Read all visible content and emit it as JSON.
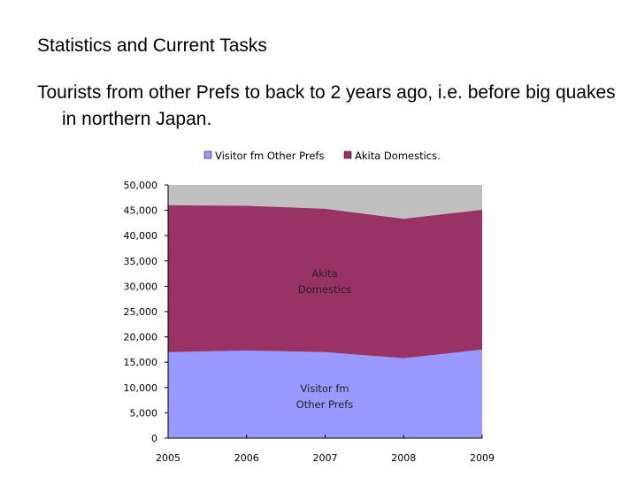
{
  "slide": {
    "title": "Statistics and Current Tasks",
    "body": "Tourists from other Prefs to back to 2 years ago, i.e. before big quakes in northern Japan."
  },
  "chart_data": {
    "type": "area",
    "stacked": true,
    "x": [
      "2005",
      "2006",
      "2007",
      "2008",
      "2009"
    ],
    "ylim": [
      0,
      50000
    ],
    "yticks": [
      "0",
      "5,000",
      "10,000",
      "15,000",
      "20,000",
      "25,000",
      "30,000",
      "35,000",
      "40,000",
      "45,000",
      "50,000"
    ],
    "legend_position": "top",
    "series": [
      {
        "name": "Visitor fm Other Prefs",
        "values": [
          17000,
          17300,
          17000,
          15800,
          17500
        ],
        "color": "#9999ff",
        "area_label": [
          "Visitor fm",
          "Other Prefs"
        ]
      },
      {
        "name": "Akita Domestics.",
        "values": [
          29000,
          28600,
          28300,
          27500,
          27600
        ],
        "color": "#993366",
        "area_label": [
          "Akita",
          "Domestics"
        ]
      }
    ],
    "remainder_color": "#c0c0c0"
  }
}
